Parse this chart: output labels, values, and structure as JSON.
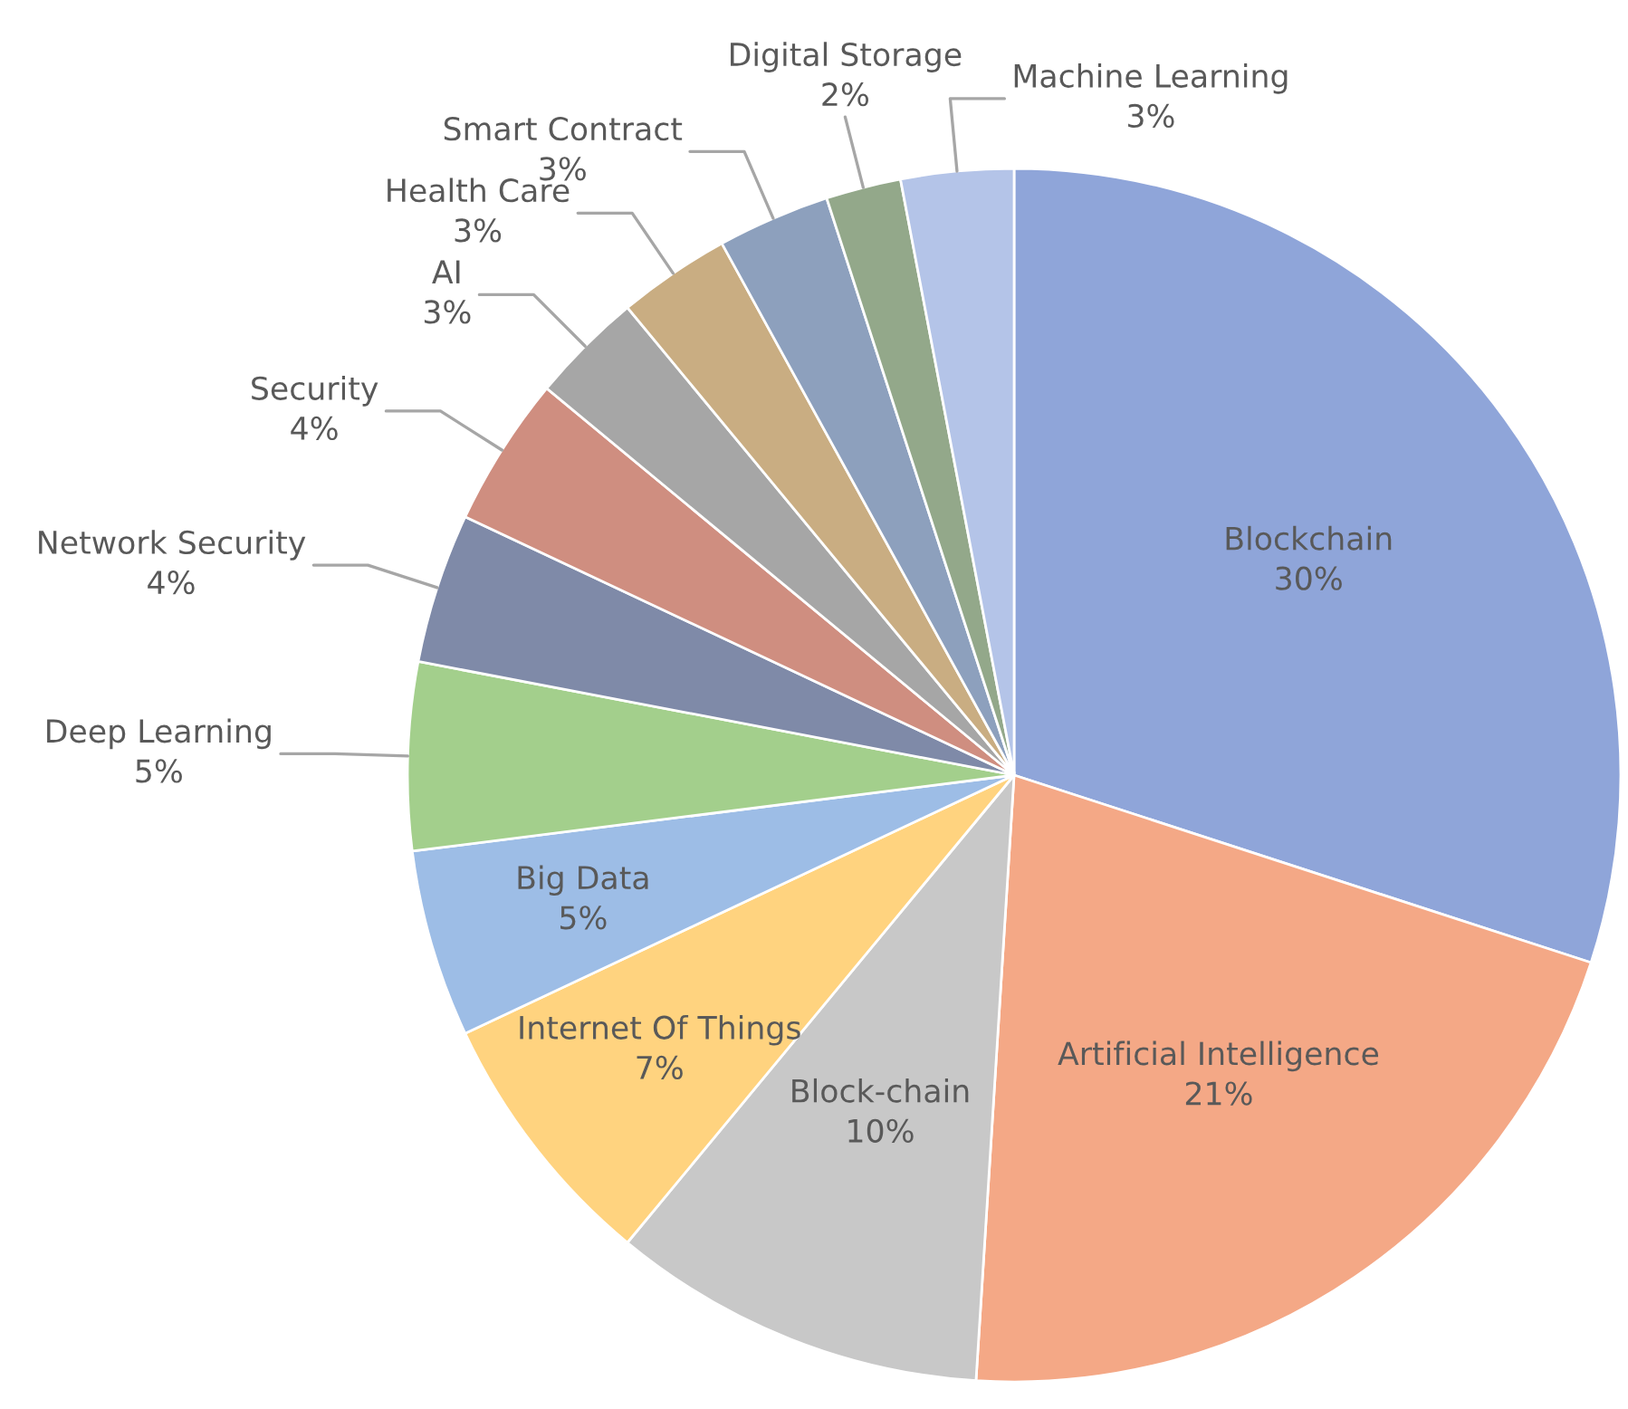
{
  "chart_data": {
    "type": "pie",
    "categories": [
      "Blockchain",
      "Artificial Intelligence",
      "Block-chain",
      "Internet Of Things",
      "Big Data",
      "Deep Learning",
      "Network Security",
      "Security",
      "AI",
      "Health Care",
      "Smart Contract",
      "Digital Storage",
      "Machine Learning"
    ],
    "values": [
      30,
      21,
      10,
      7,
      5,
      5,
      4,
      4,
      3,
      3,
      3,
      2,
      3
    ],
    "value_labels": [
      "30%",
      "21%",
      "10%",
      "7%",
      "5%",
      "5%",
      "4%",
      "4%",
      "3%",
      "3%",
      "3%",
      "2%",
      "3%"
    ],
    "colors": [
      "#8fa5d9",
      "#f4a886",
      "#c8c8c8",
      "#ffd37f",
      "#9dbde6",
      "#a3cf8c",
      "#7f8aa8",
      "#cf8e80",
      "#a6a6a6",
      "#c9ad82",
      "#8da0bd",
      "#93a88a",
      "#b4c4e8"
    ],
    "legend": false
  }
}
